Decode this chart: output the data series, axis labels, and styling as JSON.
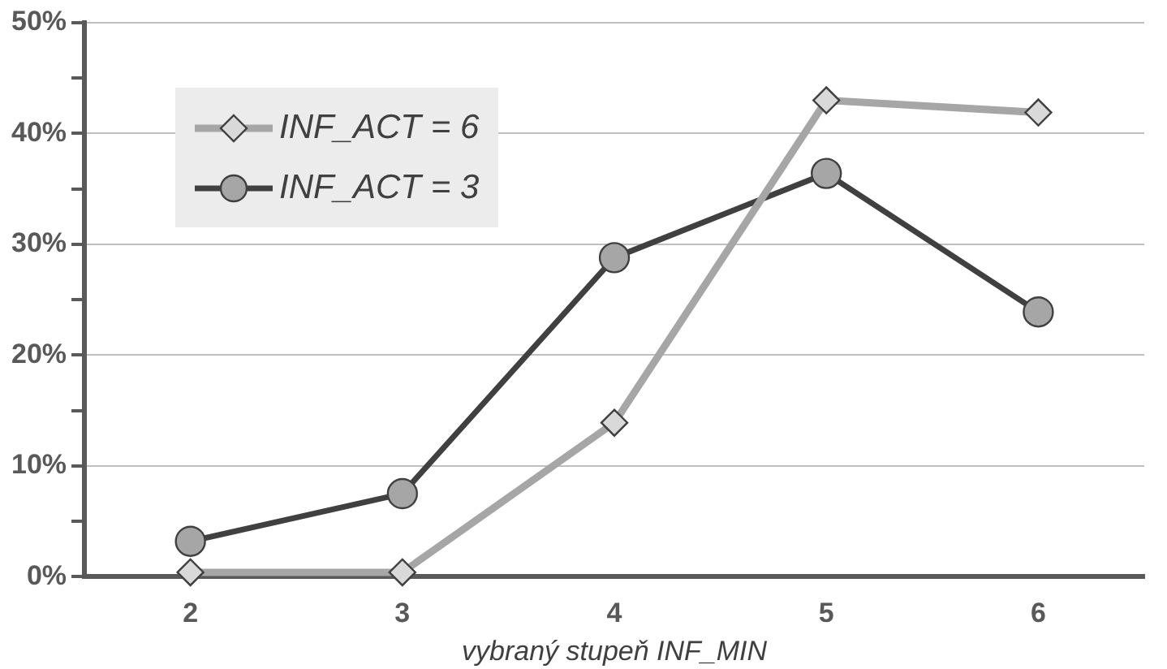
{
  "chart_data": {
    "type": "line",
    "xlabel": "vybraný stupeň INF_MIN",
    "categories": [
      "2",
      "3",
      "4",
      "5",
      "6"
    ],
    "series": [
      {
        "name": "INF_ACT = 6",
        "color": "#a6a6a6",
        "marker": "diamond",
        "values": [
          0.4,
          0.4,
          13.9,
          43.0,
          41.9
        ]
      },
      {
        "name": "INF_ACT = 3",
        "color": "#404040",
        "marker": "circle",
        "values": [
          3.2,
          7.5,
          28.8,
          36.4,
          23.9
        ]
      }
    ],
    "ylim": [
      0,
      50
    ],
    "yticks": [
      {
        "value": 0,
        "label": "0%"
      },
      {
        "value": 5,
        "label": null
      },
      {
        "value": 10,
        "label": "10%"
      },
      {
        "value": 15,
        "label": null
      },
      {
        "value": 20,
        "label": "20%"
      },
      {
        "value": 25,
        "label": null
      },
      {
        "value": 30,
        "label": "30%"
      },
      {
        "value": 35,
        "label": null
      },
      {
        "value": 40,
        "label": "40%"
      },
      {
        "value": 45,
        "label": null
      },
      {
        "value": 50,
        "label": "50%"
      }
    ],
    "grid": "y",
    "legend": "top left",
    "line_style": "solid"
  }
}
